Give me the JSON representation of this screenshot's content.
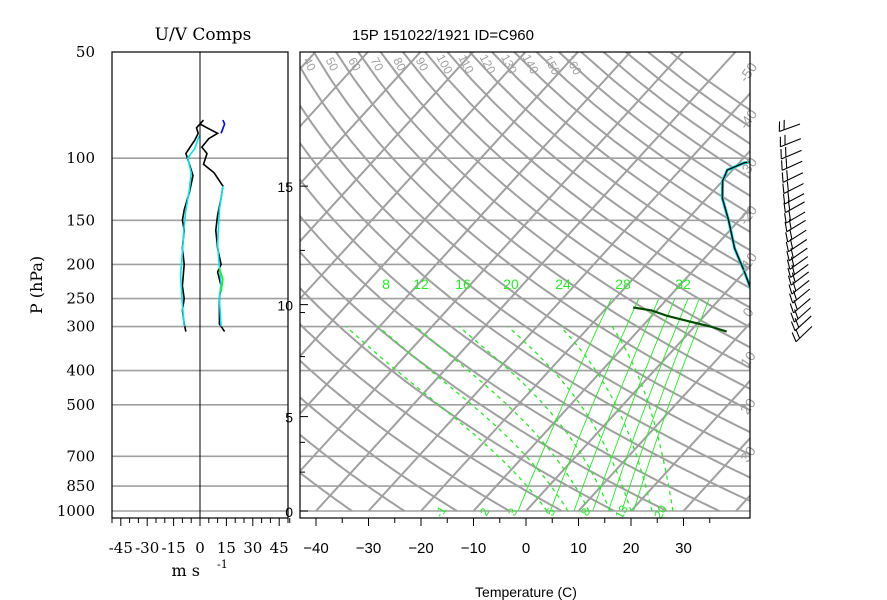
{
  "colors": {
    "grid": "#a0a0a0",
    "green": "#22ee22",
    "dark": "#000000",
    "cyan": "#00e6e6",
    "blue": "#0000ff",
    "darkgreen": "#004d00"
  },
  "left_title": "U/V Comps",
  "right_title": "15P 151022/1921 ID=C960",
  "left_ylabel": "P (hPa)",
  "left_xlabel": "m s",
  "left_xlabel_exp": "-1",
  "bottom_xlabel": "Temperature (C)",
  "chart_data": [
    {
      "type": "line",
      "title": "U/V Comps",
      "ylabel": "P (hPa)",
      "xlabel": "m s -1",
      "y_scale": "log",
      "ylim": [
        1000,
        50
      ],
      "xlim": [
        -50,
        50
      ],
      "pressure_ticks": [
        {
          "p": 50,
          "label": "50"
        },
        {
          "p": 100,
          "label": "100"
        },
        {
          "p": 150,
          "label": "150"
        },
        {
          "p": 200,
          "label": "200"
        },
        {
          "p": 250,
          "label": "250"
        },
        {
          "p": 300,
          "label": "300"
        },
        {
          "p": 400,
          "label": "400"
        },
        {
          "p": 500,
          "label": "500"
        },
        {
          "p": 700,
          "label": "700"
        },
        {
          "p": 850,
          "label": "850"
        },
        {
          "p": 1000,
          "label": "1000"
        }
      ],
      "gridlines_p": [
        100,
        150,
        200,
        250,
        300,
        400,
        500,
        700,
        850,
        1000
      ],
      "x_tick_labels": [
        "-45",
        "-30",
        "-15",
        "0",
        "15",
        "30",
        "45"
      ],
      "x_tick_values": [
        -45,
        -30,
        -15,
        0,
        15,
        30,
        45
      ],
      "series": [
        {
          "color": "#000000",
          "points": [
            [
              -8,
              310
            ],
            [
              -9,
              295
            ],
            [
              -10,
              270
            ],
            [
              -9,
              250
            ],
            [
              -10,
              230
            ],
            [
              -9,
              200
            ],
            [
              -10,
              180
            ],
            [
              -9,
              160
            ],
            [
              -10,
              150
            ],
            [
              -9,
              140
            ],
            [
              -6,
              125
            ],
            [
              -4,
              112
            ],
            [
              -6,
              104
            ],
            [
              -8,
              97
            ],
            [
              -5,
              92
            ],
            [
              -3,
              89
            ],
            [
              -1,
              85
            ],
            [
              -2,
              82
            ],
            [
              2,
              78
            ]
          ]
        },
        {
          "color": "#00e6e6",
          "points": [
            [
              -9,
              300
            ],
            [
              -10,
              260
            ],
            [
              -11,
              215
            ],
            [
              -10,
              185
            ],
            [
              -9,
              155
            ],
            [
              -8,
              140
            ],
            [
              -6,
              123
            ],
            [
              -5,
              110
            ],
            [
              -7,
              100
            ],
            [
              -3,
              94
            ],
            [
              -1,
              88
            ],
            [
              0,
              86
            ]
          ]
        },
        {
          "color": "#000000",
          "points": [
            [
              14,
              310
            ],
            [
              11,
              295
            ],
            [
              11,
              270
            ],
            [
              11,
              250
            ],
            [
              12,
              230
            ],
            [
              10,
              210
            ],
            [
              12,
              200
            ],
            [
              10,
              180
            ],
            [
              9,
              160
            ],
            [
              10,
              145
            ],
            [
              12,
              130
            ],
            [
              13,
              120
            ],
            [
              8,
              110
            ],
            [
              2,
              104
            ],
            [
              4,
              97
            ],
            [
              1,
              93
            ],
            [
              5,
              88
            ],
            [
              10,
              85
            ],
            [
              4,
              82
            ],
            [
              0,
              80
            ]
          ]
        },
        {
          "color": "#0000ff",
          "points": [
            [
              12,
              85
            ],
            [
              14,
              80
            ],
            [
              13,
              78
            ]
          ]
        },
        {
          "color": "#00e6e6",
          "points": [
            [
              12,
              300
            ],
            [
              11,
              250
            ],
            [
              12,
              225
            ],
            [
              11,
              205
            ],
            [
              10,
              175
            ],
            [
              11,
              140
            ],
            [
              13,
              120
            ]
          ]
        },
        {
          "color": "#22ee22",
          "points": [
            [
              12,
              240
            ],
            [
              13,
              220
            ],
            [
              11,
              205
            ]
          ]
        }
      ]
    },
    {
      "type": "line",
      "title": "15P 151022/1921 ID=C960",
      "xlabel": "Temperature (C)",
      "y_scale": "log",
      "ylim": [
        1000,
        50
      ],
      "xlim": [
        -43,
        42
      ],
      "x_tick_values": [
        -40,
        -30,
        -20,
        -10,
        0,
        10,
        20,
        30
      ],
      "x_tick_labels": [
        "−40",
        "−30",
        "−20",
        "−10",
        "0",
        "10",
        "20",
        "30"
      ],
      "height_labels": [
        {
          "p": 1000,
          "label": "0"
        },
        {
          "p": 540,
          "label": "5"
        },
        {
          "p": 260,
          "label": "10"
        },
        {
          "p": 120,
          "label": "15"
        }
      ],
      "theta_labels": [
        "40",
        "50",
        "60",
        "70",
        "80",
        "90",
        "100",
        "110",
        "120",
        "130",
        "140",
        "150",
        "160"
      ],
      "isotherm_top_labels": [
        "-50",
        "-40",
        "-30",
        "-20",
        "-10",
        "0",
        "10",
        "20",
        "30"
      ],
      "mixing_ratio_labels": [
        "8",
        "12",
        "16",
        "20",
        "24",
        "28",
        "32"
      ],
      "bottom_green_labels": [
        "-1",
        "2",
        "3",
        "5",
        "8",
        "13",
        "20"
      ],
      "temperature_profile": [
        [
          15.6,
          300
        ],
        [
          12,
          280
        ],
        [
          8,
          260
        ],
        [
          5,
          240
        ],
        [
          0,
          210
        ],
        [
          -6,
          180
        ],
        [
          -12,
          150
        ],
        [
          -17,
          130
        ],
        [
          -20,
          116
        ],
        [
          -21,
          108
        ],
        [
          -19,
          103
        ],
        [
          -14,
          101
        ],
        [
          -9,
          100
        ],
        [
          -5,
          95
        ],
        [
          -2,
          90
        ],
        [
          1,
          87
        ],
        [
          3,
          86
        ],
        [
          7,
          85
        ],
        [
          11,
          82
        ],
        [
          14,
          80
        ],
        [
          16,
          78
        ],
        [
          18,
          75
        ],
        [
          20,
          73
        ],
        [
          22,
          72
        ]
      ],
      "dewpoint_profile": [
        [
          7,
          310
        ],
        [
          3,
          300
        ],
        [
          -2,
          290
        ],
        [
          -7,
          280
        ],
        [
          -11,
          270
        ],
        [
          -15,
          265
        ]
      ],
      "wind_barbs_p": [
        80,
        88,
        95,
        102,
        110,
        118,
        126,
        133,
        142,
        150,
        160,
        170,
        180,
        190,
        200,
        210,
        222,
        235,
        250,
        265,
        280,
        300
      ],
      "wind_barbs_top_p": [
        80,
        88,
        95
      ],
      "wind_barbs_bottom_p": [
        300
      ]
    }
  ]
}
